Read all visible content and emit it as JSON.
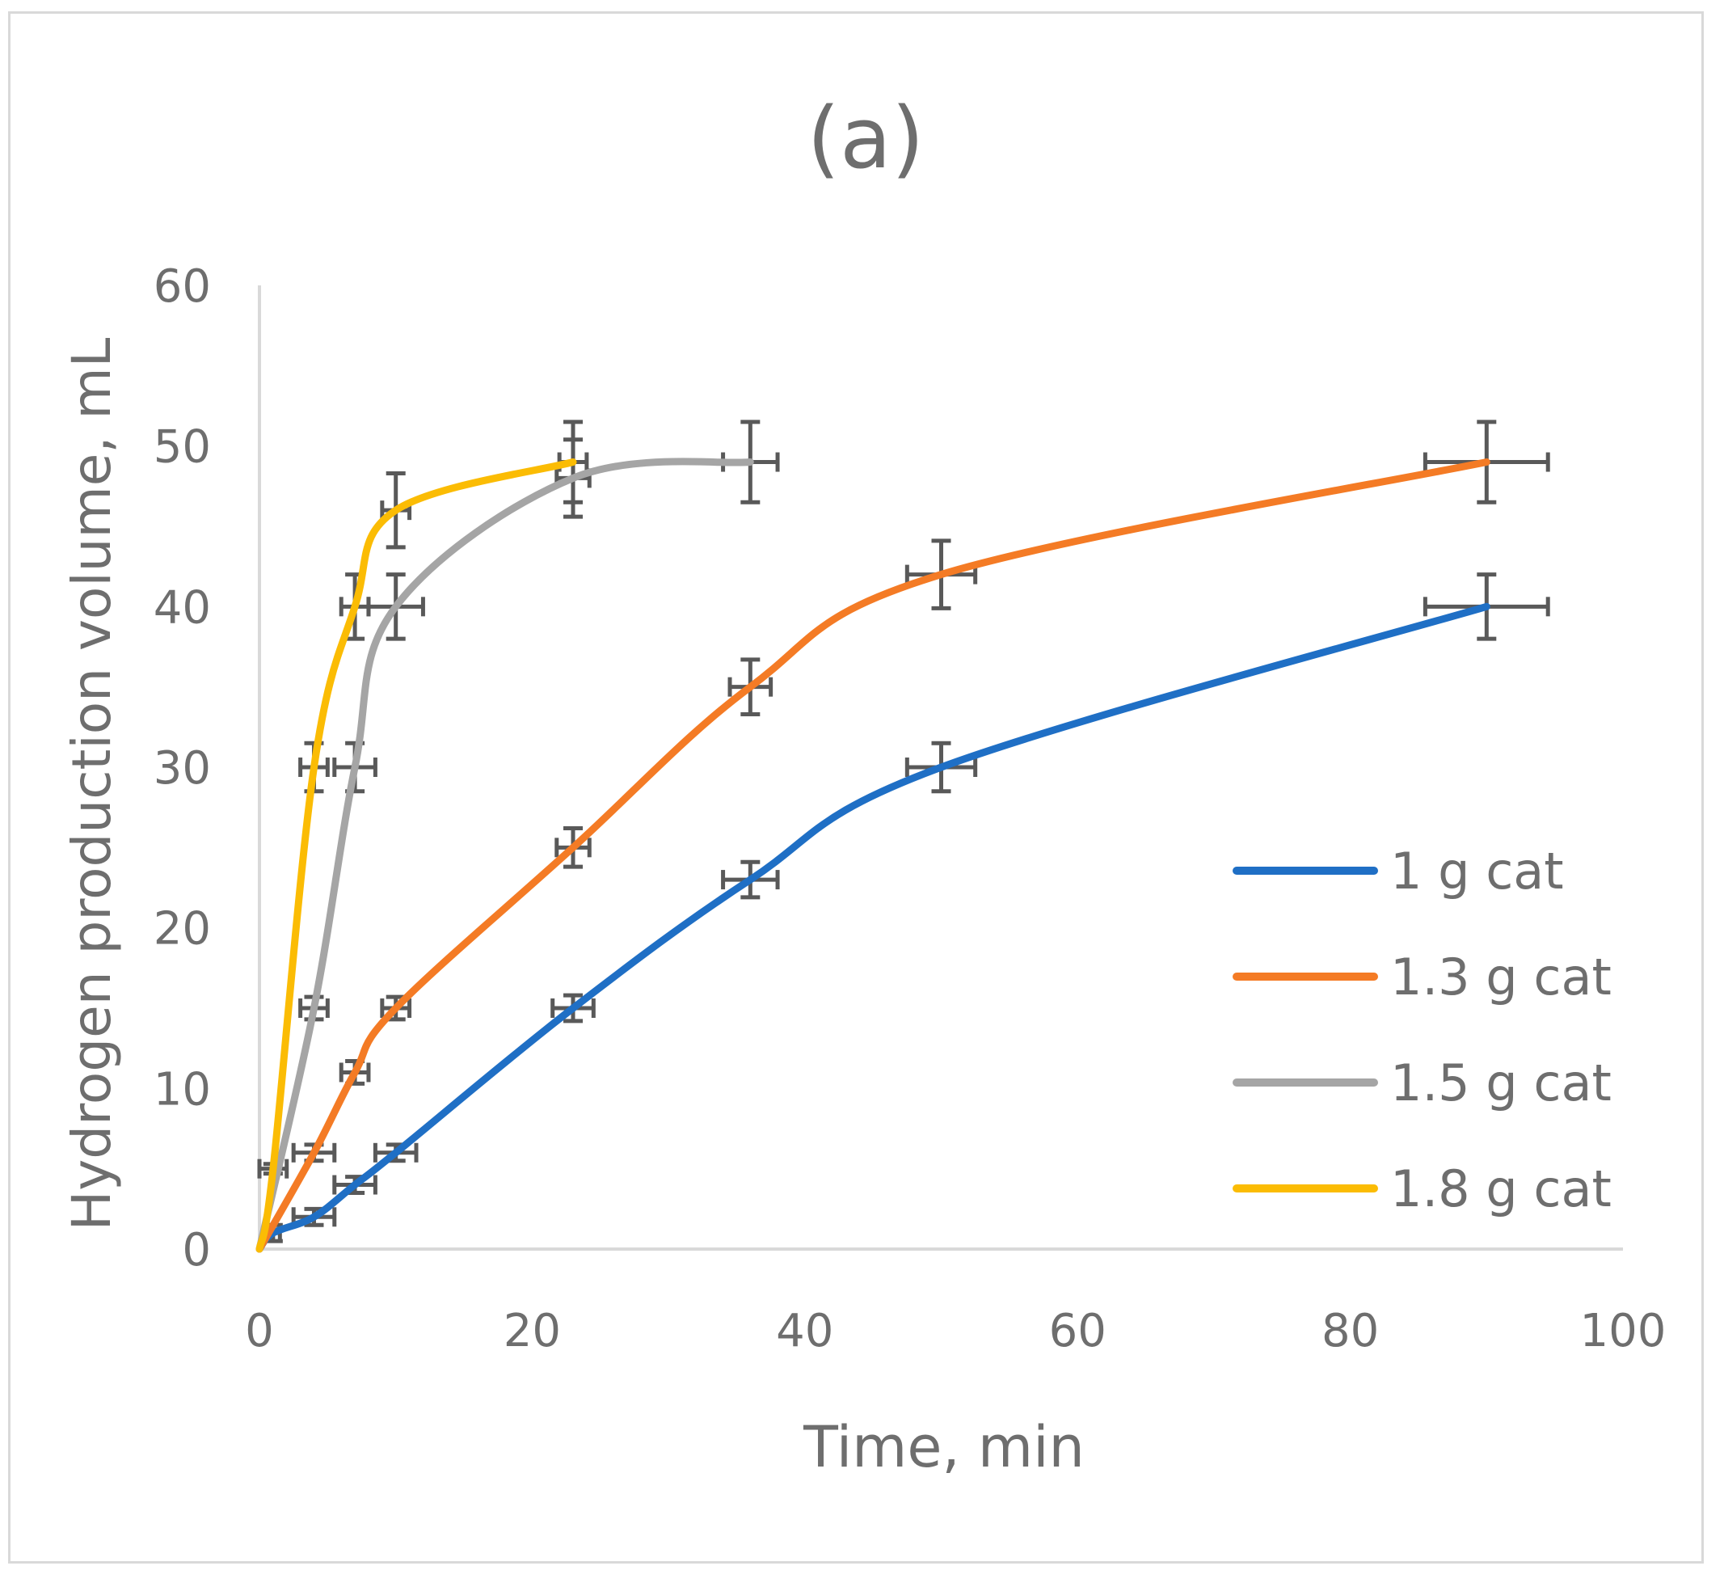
{
  "chart_data": {
    "type": "line",
    "title": "(a)",
    "xlabel": "Time, min",
    "ylabel": "Hydrogen production volume, mL",
    "xlim": [
      0,
      100
    ],
    "ylim": [
      0,
      60
    ],
    "xticks": [
      0,
      20,
      40,
      60,
      80,
      100
    ],
    "yticks": [
      0,
      10,
      20,
      30,
      40,
      50,
      60
    ],
    "grid": false,
    "legend_position": "right",
    "series": [
      {
        "name": "1 g cat",
        "color": "#1f6fc5",
        "x": [
          0,
          1,
          4,
          7,
          10,
          23,
          36,
          50,
          90
        ],
        "y": [
          0,
          1,
          2,
          4,
          6,
          15,
          23,
          30,
          40
        ],
        "xerr": [
          0,
          0.5,
          1.5,
          1.5,
          1.5,
          1.5,
          2,
          2.5,
          4.5
        ],
        "yerr": [
          0,
          0.5,
          0.5,
          0.5,
          0.5,
          0.8,
          1.1,
          1.5,
          2
        ]
      },
      {
        "name": "1.3 g cat",
        "color": "#f47b25",
        "x": [
          0,
          4,
          7,
          10,
          23,
          36,
          50,
          90
        ],
        "y": [
          0,
          6,
          11,
          15,
          25,
          35,
          42,
          49
        ],
        "xerr": [
          0,
          1.5,
          1,
          1,
          1.2,
          1.5,
          2.5,
          4.5
        ],
        "yerr": [
          0,
          0.5,
          0.7,
          0.7,
          1.2,
          1.7,
          2.1,
          2.5
        ]
      },
      {
        "name": "1.5 g cat",
        "color": "#a5a5a5",
        "x": [
          0,
          4,
          7,
          10,
          23,
          36
        ],
        "y": [
          0,
          15,
          30,
          40,
          48,
          49
        ],
        "xerr": [
          0,
          1,
          1.5,
          2,
          1.2,
          2
        ],
        "yerr": [
          0,
          0.7,
          1.5,
          2,
          2.4,
          2.5
        ]
      },
      {
        "name": "1.8 g cat",
        "color": "#fbbc04",
        "x": [
          0,
          1,
          4,
          7,
          10,
          23
        ],
        "y": [
          0,
          5,
          30,
          40,
          46,
          49
        ],
        "xerr": [
          0,
          1,
          1,
          1,
          1,
          1
        ],
        "yerr": [
          0,
          0.3,
          1.5,
          2,
          2.3,
          2.5
        ]
      }
    ]
  }
}
